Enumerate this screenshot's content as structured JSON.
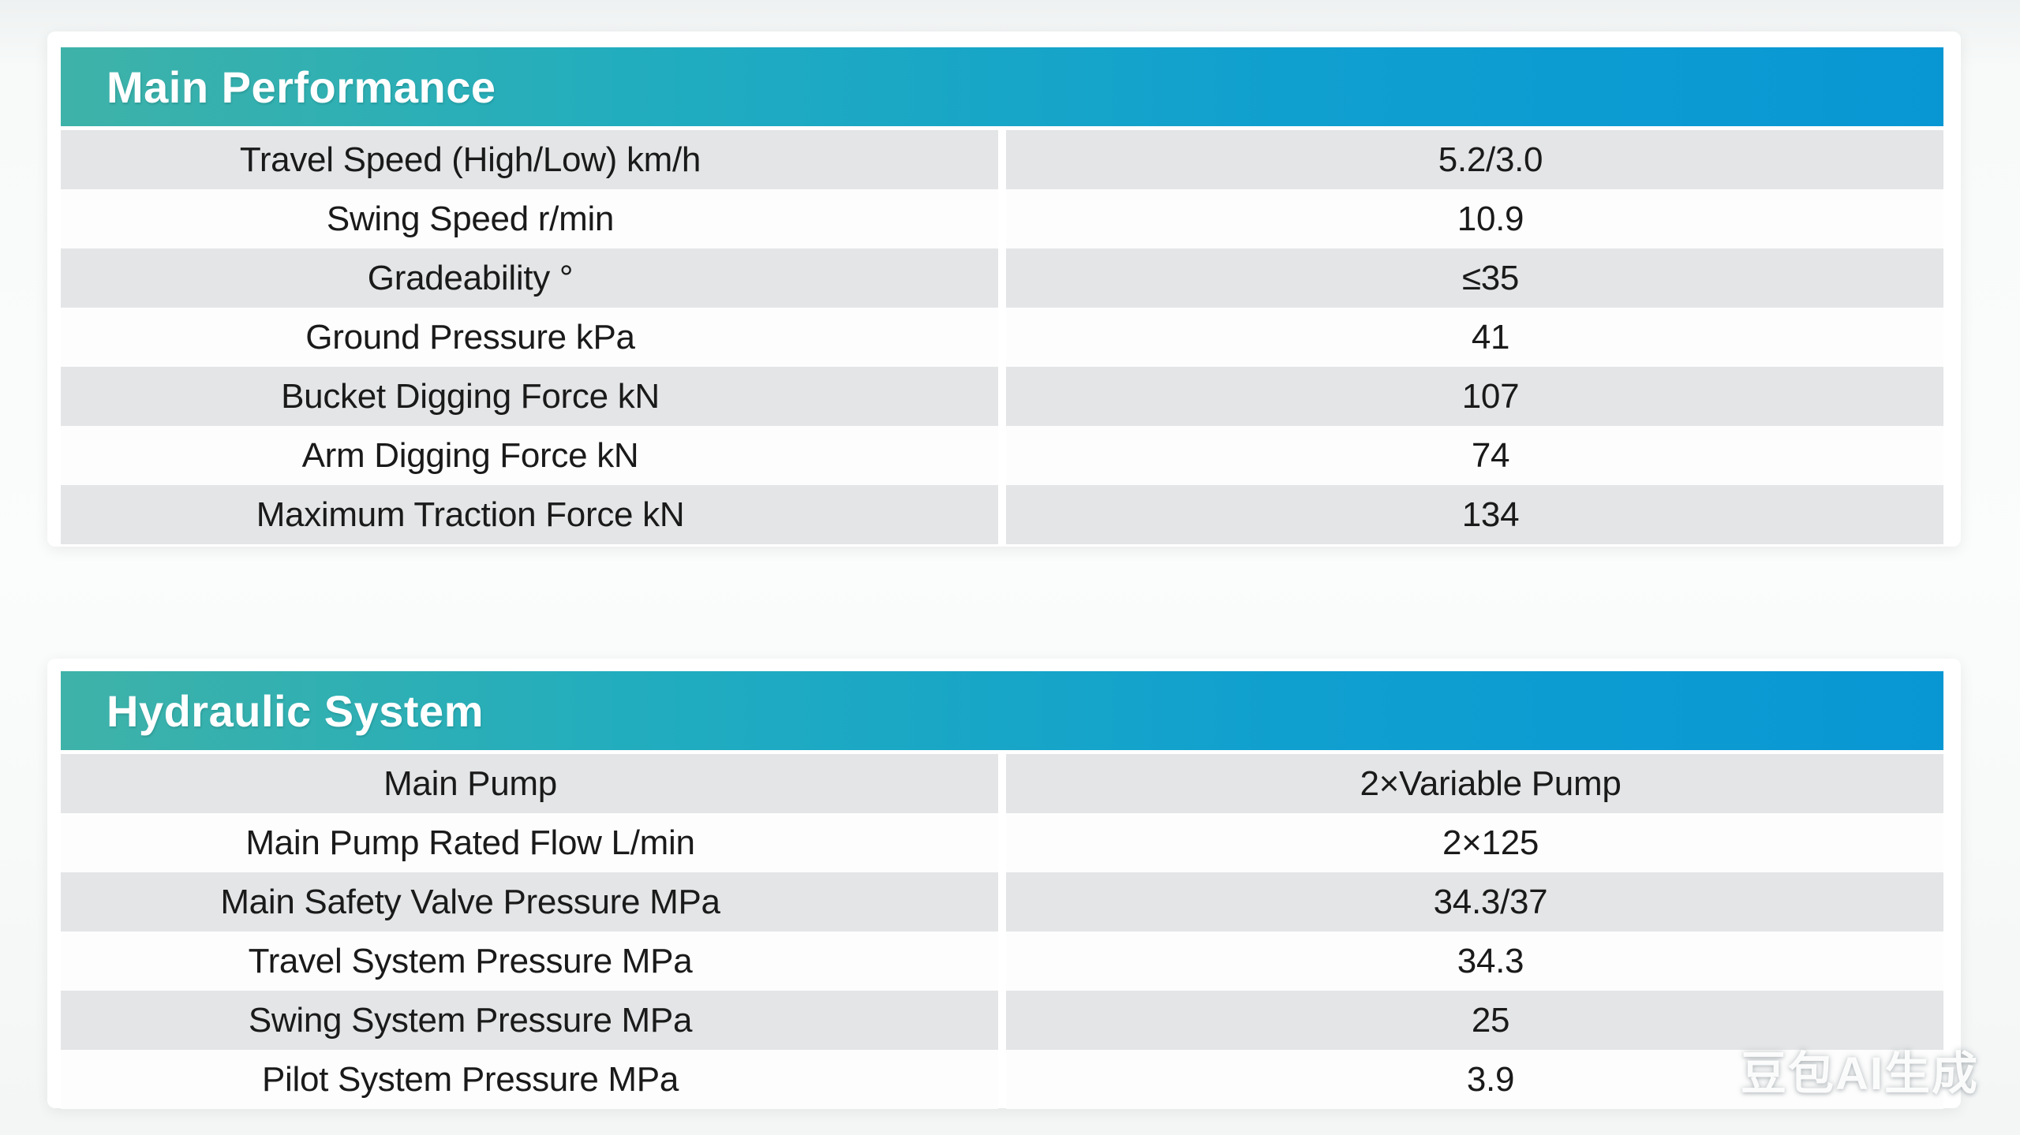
{
  "theme": {
    "header_gradient_left": "#3eb2a8",
    "header_gradient_mid1": "#22adbe",
    "header_gradient_mid2": "#10a0cf",
    "header_gradient_right": "#0997d4",
    "header_text_color": "#ffffff",
    "row_alt_color": "#e3e5e6",
    "row_base_color": "#fdfdfd",
    "body_text_color": "#1a1a1a"
  },
  "watermark": {
    "text": "豆包AI生成"
  },
  "tables": [
    {
      "title": "Main Performance",
      "rows": [
        {
          "label": "Travel Speed (High/Low) km/h",
          "value": "5.2/3.0"
        },
        {
          "label": "Swing Speed r/min",
          "value": "10.9"
        },
        {
          "label": "Gradeability °",
          "value": "≤35"
        },
        {
          "label": "Ground Pressure kPa",
          "value": "41"
        },
        {
          "label": "Bucket Digging Force kN",
          "value": "107"
        },
        {
          "label": "Arm Digging Force kN",
          "value": "74"
        },
        {
          "label": "Maximum Traction Force kN",
          "value": "134"
        }
      ]
    },
    {
      "title": "Hydraulic System",
      "rows": [
        {
          "label": "Main Pump",
          "value": "2×Variable Pump"
        },
        {
          "label": "Main Pump Rated Flow L/min",
          "value": "2×125"
        },
        {
          "label": "Main Safety Valve Pressure MPa",
          "value": "34.3/37"
        },
        {
          "label": "Travel System Pressure MPa",
          "value": "34.3"
        },
        {
          "label": "Swing System Pressure MPa",
          "value": "25"
        },
        {
          "label": "Pilot System Pressure MPa",
          "value": "3.9"
        }
      ]
    }
  ]
}
